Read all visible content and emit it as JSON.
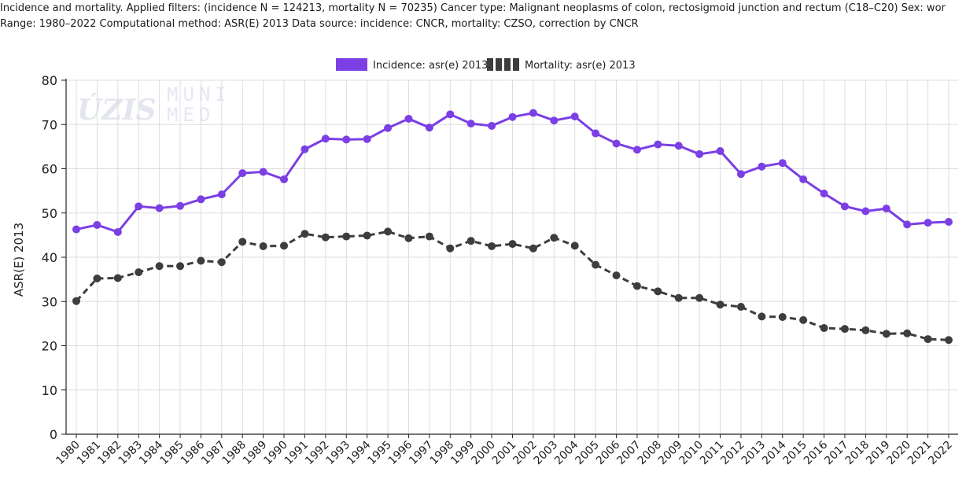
{
  "header": {
    "line1": "Incidence and mortality. Applied filters: (incidence N = 124213, mortality N = 70235) Cancer type: Malignant neoplasms of colon, rectosigmoid junction and rectum (C18–C20) Sex: wor",
    "line2": "Range: 1980–2022 Computational method: ASR(E) 2013 Data source: incidence: CNCR, mortality: CZSO, correction by CNCR"
  },
  "watermark": {
    "logo1": "ÚZIS",
    "logo2_line1": "MUNI",
    "logo2_line2": "MED"
  },
  "colors": {
    "incidence": "#7b3fe4",
    "mortality": "#3d3d3d",
    "grid": "#dddddd",
    "axis": "#222222"
  },
  "chart_data": {
    "type": "line",
    "title": "",
    "xlabel": "",
    "ylabel": "ASR(E) 2013",
    "ylim": [
      0,
      80
    ],
    "yticks": [
      0,
      10,
      20,
      30,
      40,
      50,
      60,
      70,
      80
    ],
    "grid": true,
    "legend_position": "top-center",
    "x": [
      1980,
      1981,
      1982,
      1983,
      1984,
      1985,
      1986,
      1987,
      1988,
      1989,
      1990,
      1991,
      1992,
      1993,
      1994,
      1995,
      1996,
      1997,
      1998,
      1999,
      2000,
      2001,
      2002,
      2003,
      2004,
      2005,
      2006,
      2007,
      2008,
      2009,
      2010,
      2011,
      2012,
      2013,
      2014,
      2015,
      2016,
      2017,
      2018,
      2019,
      2020,
      2021,
      2022
    ],
    "series": [
      {
        "name": "Incidence: asr(e) 2013",
        "style": "solid",
        "color": "#7b3fe4",
        "values": [
          46.3,
          47.3,
          45.7,
          51.5,
          51.1,
          51.6,
          53.1,
          54.2,
          59.0,
          59.3,
          57.6,
          64.4,
          66.8,
          66.6,
          66.7,
          69.2,
          71.3,
          69.3,
          72.3,
          70.2,
          69.7,
          71.7,
          72.6,
          70.9,
          71.8,
          68.0,
          65.7,
          64.3,
          65.5,
          65.2,
          63.3,
          64.0,
          58.8,
          60.5,
          61.3,
          57.6,
          54.4,
          51.5,
          50.4,
          51.0,
          47.4,
          47.8,
          48.0
        ]
      },
      {
        "name": "Mortality: asr(e) 2013",
        "style": "dashed",
        "color": "#3d3d3d",
        "values": [
          30.1,
          35.2,
          35.3,
          36.6,
          38.0,
          38.0,
          39.2,
          38.9,
          43.5,
          42.5,
          42.6,
          45.3,
          44.5,
          44.7,
          44.9,
          45.8,
          44.3,
          44.7,
          42.0,
          43.7,
          42.5,
          43.0,
          42.0,
          44.4,
          42.6,
          38.3,
          35.9,
          33.5,
          32.3,
          30.8,
          30.8,
          29.3,
          28.8,
          26.6,
          26.5,
          25.8,
          24.0,
          23.8,
          23.5,
          22.7,
          22.8,
          21.5,
          21.3
        ]
      }
    ]
  }
}
